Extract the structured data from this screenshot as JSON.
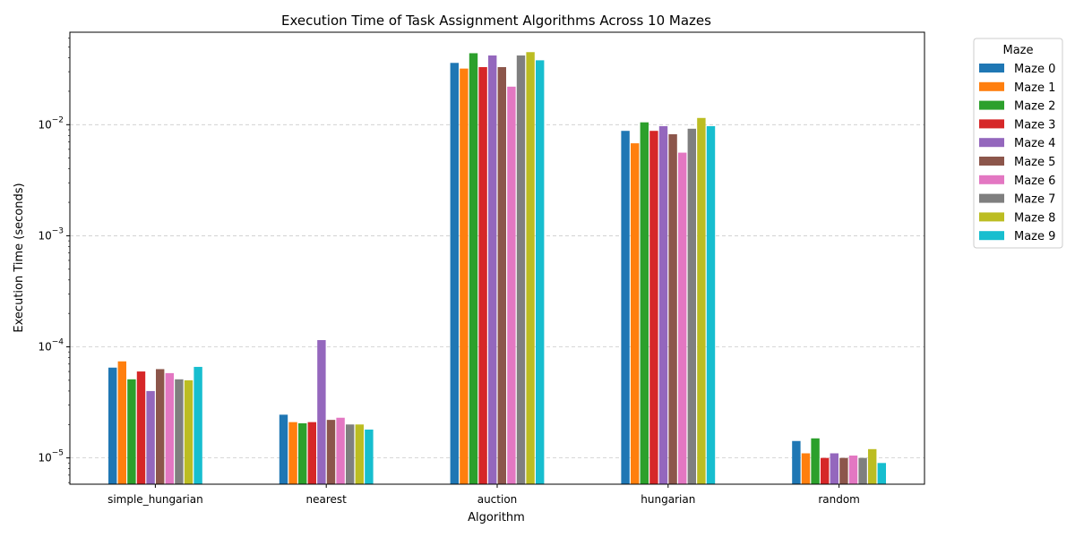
{
  "chart_data": {
    "type": "bar",
    "title": "Execution Time of Task Assignment Algorithms Across 10 Mazes",
    "xlabel": "Algorithm",
    "ylabel": "Execution Time (seconds)",
    "yscale": "log",
    "ylim": [
      5.8e-06,
      0.068
    ],
    "grid": "y-dashed",
    "legend": {
      "title": "Maze",
      "placement": "outside-right"
    },
    "categories": [
      "simple_hungarian",
      "nearest",
      "auction",
      "hungarian",
      "random"
    ],
    "yticks": [
      {
        "value": 1e-05,
        "exp": "−5"
      },
      {
        "value": 0.0001,
        "exp": "−4"
      },
      {
        "value": 0.001,
        "exp": "−3"
      },
      {
        "value": 0.01,
        "exp": "−2"
      }
    ],
    "tick_base": "10",
    "series": [
      {
        "name": "Maze 0",
        "color": "#1f77b4",
        "values": [
          6.5e-05,
          2.45e-05,
          0.036,
          0.0088,
          1.42e-05
        ]
      },
      {
        "name": "Maze 1",
        "color": "#ff7f0e",
        "values": [
          7.4e-05,
          2.1e-05,
          0.032,
          0.0068,
          1.1e-05
        ]
      },
      {
        "name": "Maze 2",
        "color": "#2ca02c",
        "values": [
          5.1e-05,
          2.05e-05,
          0.044,
          0.0105,
          1.5e-05
        ]
      },
      {
        "name": "Maze 3",
        "color": "#d62728",
        "values": [
          6e-05,
          2.1e-05,
          0.033,
          0.0088,
          1e-05
        ]
      },
      {
        "name": "Maze 4",
        "color": "#9467bd",
        "values": [
          4e-05,
          0.000115,
          0.042,
          0.0097,
          1.1e-05
        ]
      },
      {
        "name": "Maze 5",
        "color": "#8c564b",
        "values": [
          6.3e-05,
          2.2e-05,
          0.033,
          0.0082,
          1e-05
        ]
      },
      {
        "name": "Maze 6",
        "color": "#e377c2",
        "values": [
          5.8e-05,
          2.3e-05,
          0.022,
          0.0056,
          1.05e-05
        ]
      },
      {
        "name": "Maze 7",
        "color": "#7f7f7f",
        "values": [
          5.1e-05,
          2e-05,
          0.042,
          0.0092,
          1e-05
        ]
      },
      {
        "name": "Maze 8",
        "color": "#bcbd22",
        "values": [
          5e-05,
          2e-05,
          0.045,
          0.0115,
          1.2e-05
        ]
      },
      {
        "name": "Maze 9",
        "color": "#17becf",
        "values": [
          6.6e-05,
          1.8e-05,
          0.038,
          0.0097,
          9e-06
        ]
      }
    ]
  }
}
